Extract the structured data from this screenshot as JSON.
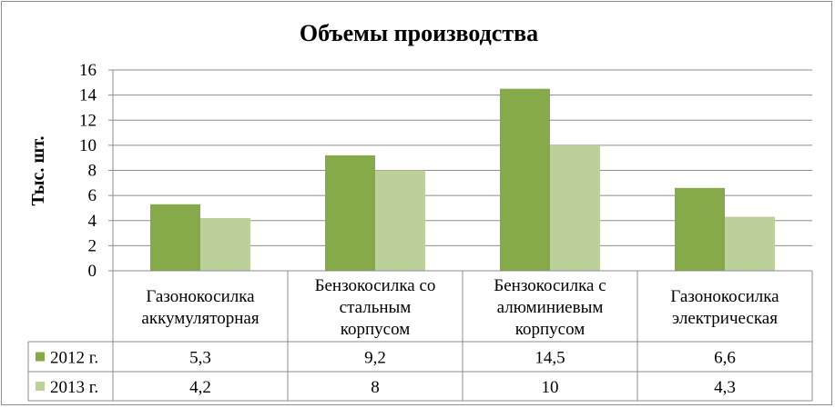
{
  "chart_data": {
    "type": "bar",
    "title": "Объемы производства",
    "ylabel": "Тыс. шт.",
    "xlabel": "",
    "ylim": [
      0,
      16
    ],
    "yticks": [
      "0",
      "2",
      "4",
      "6",
      "8",
      "10",
      "12",
      "14",
      "16"
    ],
    "grid": true,
    "legend": "data-table",
    "categories": [
      [
        "Газонокосилка",
        "аккумуляторная"
      ],
      [
        "Бензокосилка со",
        "стальным",
        "корпусом"
      ],
      [
        "Бензокосилка с",
        "алюминиевым",
        "корпусом"
      ],
      [
        "Газонокосилка",
        "электрическая"
      ]
    ],
    "series": [
      {
        "name": "2012 г.",
        "color": "#86a94a",
        "values": [
          5.3,
          9.2,
          14.5,
          6.6
        ],
        "labels": [
          "5,3",
          "9,2",
          "14,5",
          "6,6"
        ]
      },
      {
        "name": "2013 г.",
        "color": "#bcd19a",
        "values": [
          4.2,
          8,
          10,
          4.3
        ],
        "labels": [
          "4,2",
          "8",
          "10",
          "4,3"
        ]
      }
    ]
  }
}
